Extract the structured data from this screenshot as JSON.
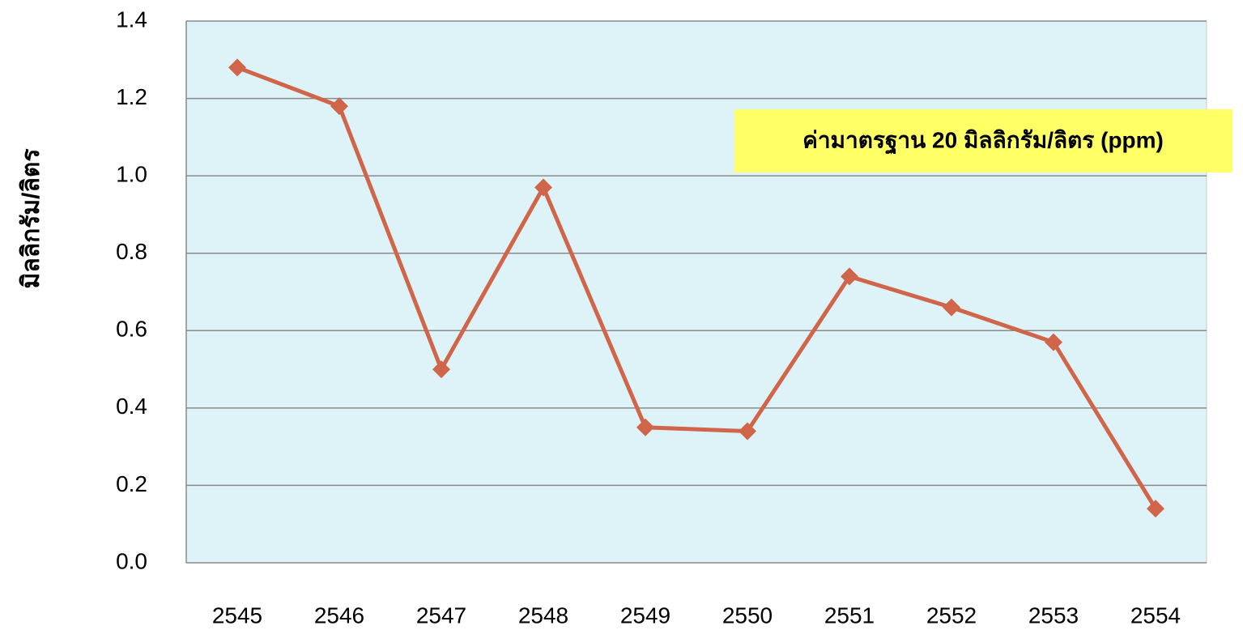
{
  "chart_data": {
    "type": "line",
    "y_label": "มิลลิกรัม/ลิตร",
    "annotation": "ค่ามาตรฐาน 20 มิลลิกรัม/ลิตร (ppm)",
    "categories": [
      "2545",
      "2546",
      "2547",
      "2548",
      "2549",
      "2550",
      "2551",
      "2552",
      "2553",
      "2554"
    ],
    "series": [
      {
        "name": "มิลลิกรัม/ลิตร",
        "color": "#d0654a",
        "values": [
          1.28,
          1.18,
          0.5,
          0.97,
          0.35,
          0.34,
          0.74,
          0.66,
          0.57,
          0.14
        ]
      }
    ],
    "ylim": [
      0,
      1.4
    ],
    "yticks": [
      {
        "value": 0,
        "label": "0.0"
      },
      0.2,
      0.4,
      0.6,
      0.8,
      {
        "value": 1,
        "label": "1.0"
      },
      1.2,
      1.4
    ],
    "grid": true
  }
}
